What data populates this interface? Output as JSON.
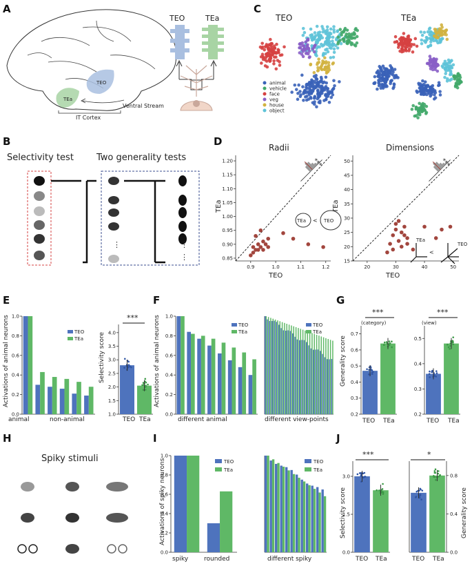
{
  "panel_labels": {
    "A": "A",
    "B": "B",
    "C": "C",
    "D": "D",
    "E": "E",
    "F": "F",
    "G": "G",
    "H": "H",
    "I": "I",
    "J": "J"
  },
  "panel_a": {
    "label_teo": "TEO",
    "label_tea": "TEa",
    "brain_teo": "TEO",
    "brain_tea": "TEa",
    "it_cortex": "IT Cortex",
    "ventral_stream": "Ventral Stream"
  },
  "panel_b": {
    "selectivity_title": "Selectivity test",
    "generality_title": "Two generality tests",
    "ellipsis": "⋮"
  },
  "panel_c": {
    "title_teo": "TEO",
    "title_tea": "TEa",
    "legend": [
      {
        "label": "animal",
        "color": "#3a62b8"
      },
      {
        "label": "vehicle",
        "color": "#43a86a"
      },
      {
        "label": "face",
        "color": "#d64141"
      },
      {
        "label": "veg",
        "color": "#8a5fc6"
      },
      {
        "label": "house",
        "color": "#d1b240"
      },
      {
        "label": "object",
        "color": "#5ec3d8"
      }
    ]
  },
  "panel_d": {
    "radii": {
      "title": "Radii",
      "xlabel": "TEO",
      "ylabel": "TEa",
      "yticks": [
        "0.85",
        "0.90",
        "0.95",
        "1.00",
        "1.05",
        "1.10",
        "1.15",
        "1.20"
      ],
      "xticks": [
        "0.9",
        "1.0",
        "1.1",
        "1.2"
      ],
      "sig": "***",
      "circle_tea": "TEa",
      "circle_teo": "TEO",
      "lt": "<",
      "hist_ticks": [
        "-0.2",
        "0.0",
        "0.2"
      ]
    },
    "dims": {
      "title": "Dimensions",
      "xlabel": "TEO",
      "ylabel": "TEa",
      "yticks": [
        "15",
        "20",
        "25",
        "30",
        "35",
        "40",
        "45",
        "50"
      ],
      "xticks": [
        "20",
        "30",
        "40",
        "50"
      ],
      "sig": "***",
      "lbl_tea": "TEa",
      "lbl_teo": "TEO",
      "lt": "<",
      "hist_ticks": [
        "-20",
        "-10",
        "0",
        "10",
        "20"
      ]
    }
  },
  "panel_e": {
    "ylabel": "Activations of animal neurons",
    "xl_animal": "animal",
    "xl_nonanimal": "non-animal",
    "legend_teo": "TEO",
    "legend_tea": "TEa",
    "score_ylabel": "Selectivity score",
    "score_yticks": [
      "1.0",
      "1.5",
      "2.0",
      "2.5",
      "3.0",
      "3.5",
      "4.0"
    ],
    "score_x": [
      "TEO",
      "TEa"
    ],
    "sig": "***"
  },
  "panel_f": {
    "ylabel": "Activations of animal neurons",
    "xl1": "different animal",
    "xl2": "different view-points",
    "legend_teo": "TEO",
    "legend_tea": "TEa"
  },
  "panel_g": {
    "ylabel": "Generality score",
    "tag1": "(category)",
    "tag2": "(view)",
    "yticks1": [
      "0.2",
      "0.3",
      "0.4",
      "0.5",
      "0.6",
      "0.7"
    ],
    "yticks2": [
      "0.2",
      "0.3",
      "0.4",
      "0.5"
    ],
    "x": [
      "TEO",
      "TEa"
    ],
    "sig": "***"
  },
  "panel_h": {
    "title": "Spiky stimuli"
  },
  "panel_i": {
    "ylabel": "Activations of spiky neurons",
    "xl_spiky": "spiky",
    "xl_rounded": "rounded",
    "xl_diff": "different spiky",
    "legend_teo": "TEO",
    "legend_tea": "TEa",
    "yticks": [
      "0.0",
      "0.2",
      "0.4",
      "0.6",
      "0.8",
      "1.0"
    ]
  },
  "panel_j": {
    "ylabel_left": "Selectivity score",
    "ylabel_right": "Generality score",
    "yticks_left": [
      "0.0",
      "1.5",
      "3.0"
    ],
    "yticks_right": [
      "0.0",
      "0.4",
      "0.8"
    ],
    "x": [
      "TEO",
      "TEa"
    ],
    "sig1": "***",
    "sig2": "*"
  },
  "chart_data": [
    {
      "type": "bar",
      "panel": "E-left",
      "categories": [
        "animal",
        "non-animal 1",
        "non-animal 2",
        "non-animal 3",
        "non-animal 4",
        "non-animal 5"
      ],
      "series": [
        {
          "name": "TEO",
          "values": [
            1.0,
            0.3,
            0.28,
            0.26,
            0.21,
            0.19
          ]
        },
        {
          "name": "TEa",
          "values": [
            1.0,
            0.43,
            0.38,
            0.36,
            0.33,
            0.28
          ]
        }
      ],
      "ylim": [
        0,
        1.0
      ]
    },
    {
      "type": "bar",
      "panel": "E-right",
      "categories": [
        "TEO",
        "TEa"
      ],
      "values": [
        2.8,
        2.05
      ],
      "ylabel": "Selectivity score",
      "ylim": [
        1.0,
        4.3
      ]
    },
    {
      "type": "bar",
      "panel": "F-left",
      "x": [
        1,
        2,
        3,
        4,
        5,
        6,
        7,
        8
      ],
      "series": [
        {
          "name": "TEO",
          "values": [
            1.0,
            0.84,
            0.77,
            0.7,
            0.62,
            0.55,
            0.48,
            0.4
          ]
        },
        {
          "name": "TEa",
          "values": [
            1.0,
            0.82,
            0.8,
            0.77,
            0.73,
            0.68,
            0.63,
            0.56
          ]
        }
      ],
      "ylim": [
        0,
        1.0
      ]
    },
    {
      "type": "bar",
      "panel": "F-right",
      "x_count": 30,
      "series": [
        {
          "name": "TEO",
          "start": 1.0,
          "end": 0.55
        },
        {
          "name": "TEa",
          "start": 1.0,
          "end": 0.75
        }
      ],
      "ylim": [
        0,
        1.0
      ]
    },
    {
      "type": "bar",
      "panel": "G-left",
      "categories": [
        "TEO",
        "TEa"
      ],
      "values": [
        0.47,
        0.64
      ],
      "ylabel": "Generality score",
      "ylim": [
        0.2,
        0.75
      ]
    },
    {
      "type": "bar",
      "panel": "G-right",
      "categories": [
        "TEO",
        "TEa"
      ],
      "values": [
        0.36,
        0.48
      ],
      "ylim": [
        0.2,
        0.55
      ]
    },
    {
      "type": "bar",
      "panel": "I-left",
      "categories": [
        "spiky",
        "rounded"
      ],
      "series": [
        {
          "name": "TEO",
          "values": [
            1.0,
            0.3
          ]
        },
        {
          "name": "TEa",
          "values": [
            1.0,
            0.63
          ]
        }
      ],
      "ylim": [
        0,
        1.0
      ]
    },
    {
      "type": "bar",
      "panel": "I-right",
      "x_count": 12,
      "series": [
        {
          "name": "TEO",
          "start": 1.0,
          "end": 0.63
        },
        {
          "name": "TEa",
          "start": 1.0,
          "end": 0.58
        }
      ],
      "ylim": [
        0,
        1.0
      ]
    },
    {
      "type": "bar",
      "panel": "J-left",
      "categories": [
        "TEO",
        "TEa"
      ],
      "values": [
        3.0,
        2.45
      ],
      "ylabel": "Selectivity score",
      "ylim": [
        0,
        3.6
      ]
    },
    {
      "type": "bar",
      "panel": "J-right",
      "categories": [
        "TEO",
        "TEa"
      ],
      "values": [
        0.62,
        0.8
      ],
      "ylabel": "Generality score",
      "ylim": [
        0,
        0.95
      ]
    },
    {
      "type": "scatter",
      "panel": "D-left",
      "xlabel": "TEO",
      "ylabel": "TEa",
      "xlim": [
        0.84,
        1.22
      ],
      "ylim": [
        0.84,
        1.22
      ],
      "points": [
        [
          0.9,
          0.86
        ],
        [
          0.91,
          0.87
        ],
        [
          0.91,
          0.89
        ],
        [
          0.92,
          0.88
        ],
        [
          0.92,
          0.93
        ],
        [
          0.93,
          0.88
        ],
        [
          0.93,
          0.9
        ],
        [
          0.94,
          0.89
        ],
        [
          0.94,
          0.95
        ],
        [
          0.95,
          0.91
        ],
        [
          0.95,
          0.88
        ],
        [
          0.96,
          0.9
        ],
        [
          0.97,
          0.92
        ],
        [
          0.97,
          0.89
        ],
        [
          1.03,
          0.94
        ],
        [
          1.07,
          0.92
        ],
        [
          1.13,
          0.9
        ],
        [
          1.19,
          0.89
        ]
      ]
    },
    {
      "type": "scatter",
      "panel": "D-right",
      "xlabel": "TEO",
      "ylabel": "TEa",
      "xlim": [
        15,
        52
      ],
      "ylim": [
        15,
        52
      ],
      "points": [
        [
          27,
          18
        ],
        [
          28,
          21
        ],
        [
          29,
          19
        ],
        [
          29,
          24
        ],
        [
          30,
          26
        ],
        [
          30,
          28
        ],
        [
          31,
          22
        ],
        [
          31,
          29
        ],
        [
          32,
          20
        ],
        [
          32,
          25
        ],
        [
          33,
          24
        ],
        [
          33,
          27
        ],
        [
          34,
          23
        ],
        [
          34,
          21
        ],
        [
          36,
          19
        ],
        [
          40,
          27
        ],
        [
          44,
          23
        ],
        [
          46,
          26
        ],
        [
          49,
          27
        ]
      ]
    }
  ]
}
